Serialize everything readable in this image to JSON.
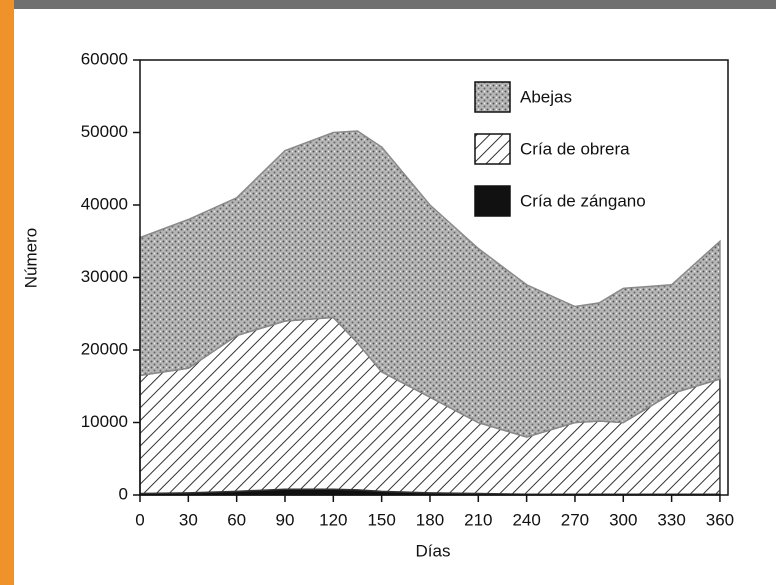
{
  "chart_data": {
    "type": "stacked_area",
    "x_label": "Días",
    "y_label": "Número",
    "x": [
      0,
      30,
      60,
      90,
      120,
      135,
      150,
      180,
      210,
      240,
      270,
      285,
      300,
      330,
      360
    ],
    "series": [
      {
        "name": "Cría de zángano",
        "color": "#111111",
        "values": [
          200,
          300,
          500,
          800,
          800,
          700,
          500,
          300,
          200,
          100,
          100,
          100,
          100,
          100,
          100
        ]
      },
      {
        "name": "Cría de obrera",
        "color": "#333333",
        "values": [
          16300,
          17200,
          21500,
          23200,
          23700,
          20300,
          16500,
          13200,
          9800,
          7900,
          9900,
          10100,
          9900,
          13900,
          15900
        ]
      },
      {
        "name": "Abejas",
        "color": "#8a8a8a",
        "values": [
          19000,
          20500,
          19000,
          23500,
          25500,
          29200,
          31000,
          26500,
          24000,
          21000,
          16000,
          16300,
          18500,
          15000,
          19000
        ]
      }
    ],
    "xlim": [
      0,
      365
    ],
    "xticks": [
      0,
      30,
      60,
      90,
      120,
      150,
      180,
      210,
      240,
      270,
      300,
      330,
      360
    ],
    "ylim": [
      0,
      60000
    ],
    "yticks": [
      0,
      10000,
      20000,
      30000,
      40000,
      50000,
      60000
    ],
    "legend": "upper right"
  }
}
